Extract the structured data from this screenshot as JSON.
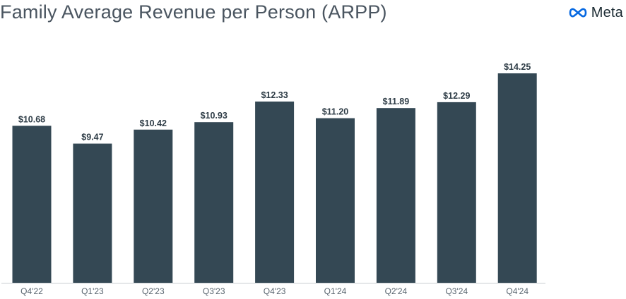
{
  "brand": {
    "name": "Meta",
    "logo_icon": "meta-infinity-icon",
    "color": "#0668E1"
  },
  "chart_data": {
    "type": "bar",
    "title": "Family Average Revenue per Person (ARPP)",
    "xlabel": "",
    "ylabel": "",
    "categories": [
      "Q4'22",
      "Q1'23",
      "Q2'23",
      "Q3'23",
      "Q4'23",
      "Q1'24",
      "Q2'24",
      "Q3'24",
      "Q4'24"
    ],
    "values": [
      10.68,
      9.47,
      10.42,
      10.93,
      12.33,
      11.2,
      11.89,
      12.29,
      14.25
    ],
    "data_labels": [
      "$10.68",
      "$9.47",
      "$10.42",
      "$10.93",
      "$12.33",
      "$11.20",
      "$11.89",
      "$12.29",
      "$14.25"
    ],
    "ylim": [
      0,
      14.25
    ],
    "grid": false,
    "legend": "none",
    "bar_color": "#344854",
    "label_color": "#2f3d47",
    "tick_color": "#5a6670",
    "axis_color": "#c8cdd1"
  }
}
